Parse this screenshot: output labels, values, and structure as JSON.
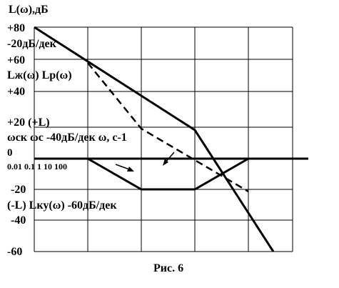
{
  "axis_title": "L(ω),дБ",
  "labels": [
    {
      "text": "+80"
    },
    {
      "text": "-20дБ/дек"
    },
    {
      "text": "+60"
    },
    {
      "text": "Lж(ω) Lр(ω)"
    },
    {
      "text": "+40"
    },
    {
      "text": "+20  (+L)"
    },
    {
      "text": "ωск ωс -40дБ/дек ω, с-1"
    },
    {
      "text": "0"
    },
    {
      "text": "0.01  0.1  1  10  100"
    },
    {
      "text": "-20"
    },
    {
      "text": "(-L) Lку(ω) -60дБ/дек"
    },
    {
      "text": "-40"
    },
    {
      "text": "-60"
    }
  ],
  "caption": "Рис. 6"
}
